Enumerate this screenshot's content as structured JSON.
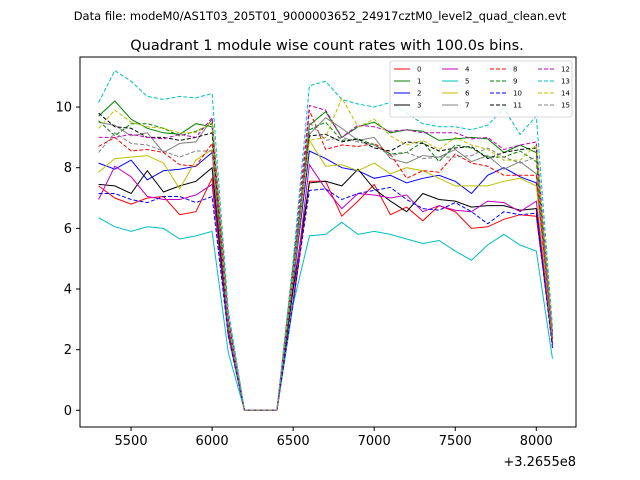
{
  "chart_data": {
    "type": "line",
    "suptitle": "Data file: modeM0/AS1T03_205T01_9000003652_24917cztM0_level2_quad_clean.evt",
    "title": "Quadrant 1 module wise count rates with 100.0s bins.",
    "xlabel": "",
    "ylabel": "",
    "x_offset_label": "+3.2655e8",
    "xlim": [
      5185,
      8245
    ],
    "ylim": [
      -0.55,
      11.65
    ],
    "xticks": [
      5500,
      6000,
      6500,
      7000,
      7500,
      8000
    ],
    "yticks": [
      0,
      2,
      4,
      6,
      8,
      10
    ],
    "x": [
      5300,
      5400,
      5500,
      5600,
      5700,
      5800,
      5900,
      6000,
      6100,
      6200,
      6300,
      6400,
      6500,
      6600,
      6700,
      6800,
      6900,
      7000,
      7100,
      7200,
      7300,
      7400,
      7500,
      7600,
      7700,
      7800,
      7900,
      8000,
      8100
    ],
    "legend_position": "top-right",
    "series": [
      {
        "name": "0",
        "color": "#ff0000",
        "dash": "solid",
        "values": [
          7.4,
          7.0,
          6.8,
          7.0,
          7.05,
          6.45,
          6.55,
          7.65,
          2.5,
          0,
          0,
          0,
          3.5,
          7.55,
          7.55,
          6.4,
          6.9,
          7.45,
          6.45,
          6.7,
          6.25,
          6.75,
          6.55,
          6.0,
          6.05,
          6.3,
          6.45,
          6.4,
          2.2
        ]
      },
      {
        "name": "1",
        "color": "#008000",
        "dash": "solid",
        "values": [
          9.7,
          10.2,
          9.6,
          9.3,
          9.15,
          9.1,
          9.45,
          9.35,
          3.0,
          0,
          0,
          0,
          4.6,
          9.4,
          9.85,
          9.0,
          9.35,
          9.5,
          9.15,
          9.25,
          9.2,
          8.9,
          8.95,
          9.0,
          8.95,
          8.5,
          8.75,
          8.5,
          2.55
        ]
      },
      {
        "name": "2",
        "color": "#0000ff",
        "dash": "solid",
        "values": [
          8.15,
          7.95,
          8.25,
          7.6,
          7.9,
          7.95,
          8.05,
          8.5,
          2.8,
          0,
          0,
          0,
          4.2,
          8.55,
          8.3,
          8.0,
          7.9,
          7.65,
          7.75,
          7.5,
          7.65,
          7.75,
          7.55,
          7.15,
          7.75,
          8.0,
          7.7,
          7.5,
          2.3
        ]
      },
      {
        "name": "3",
        "color": "#000000",
        "dash": "solid",
        "values": [
          7.45,
          7.4,
          7.15,
          7.9,
          7.2,
          7.4,
          7.55,
          8.0,
          2.65,
          0,
          0,
          0,
          4.0,
          7.5,
          7.55,
          7.4,
          7.95,
          7.3,
          6.9,
          6.55,
          7.15,
          6.95,
          6.9,
          6.7,
          6.75,
          6.75,
          6.6,
          6.65,
          2.2
        ]
      },
      {
        "name": "4",
        "color": "#c000c0",
        "dash": "solid",
        "values": [
          6.95,
          8.05,
          7.7,
          7.05,
          6.95,
          6.95,
          7.1,
          7.45,
          2.5,
          0,
          0,
          0,
          3.6,
          8.1,
          7.3,
          6.65,
          7.15,
          7.1,
          7.0,
          7.1,
          6.55,
          6.75,
          6.6,
          6.55,
          6.9,
          6.85,
          6.55,
          6.9,
          2.15
        ]
      },
      {
        "name": "5",
        "color": "#00bfbf",
        "dash": "solid",
        "values": [
          6.35,
          6.05,
          5.9,
          6.05,
          6.0,
          5.65,
          5.75,
          5.9,
          1.9,
          0,
          0,
          0,
          3.5,
          5.75,
          5.8,
          6.2,
          5.8,
          5.9,
          5.8,
          5.65,
          5.5,
          5.6,
          5.25,
          4.95,
          5.45,
          5.8,
          5.45,
          5.25,
          1.7
        ]
      },
      {
        "name": "6",
        "color": "#bfbf00",
        "dash": "solid",
        "values": [
          7.85,
          8.3,
          8.35,
          8.4,
          8.15,
          7.3,
          8.25,
          8.6,
          2.8,
          0,
          0,
          0,
          4.3,
          8.9,
          8.05,
          8.1,
          7.9,
          8.15,
          7.8,
          8.0,
          7.9,
          7.65,
          7.4,
          7.4,
          7.4,
          7.55,
          7.65,
          7.4,
          2.3
        ]
      },
      {
        "name": "7",
        "color": "#808080",
        "dash": "solid",
        "values": [
          9.5,
          9.4,
          9.05,
          9.15,
          8.5,
          8.8,
          8.85,
          9.6,
          2.95,
          0,
          0,
          0,
          4.6,
          9.1,
          9.65,
          9.3,
          8.9,
          9.0,
          8.3,
          8.15,
          8.4,
          8.35,
          8.6,
          8.2,
          8.4,
          7.95,
          8.2,
          7.8,
          2.45
        ]
      },
      {
        "name": "8",
        "color": "#ff0000",
        "dash": "dashed",
        "values": [
          8.7,
          9.0,
          8.55,
          8.6,
          8.5,
          8.1,
          8.05,
          8.8,
          2.7,
          0,
          0,
          0,
          4.3,
          9.9,
          8.6,
          8.75,
          8.7,
          8.8,
          8.45,
          7.65,
          7.9,
          7.85,
          8.45,
          8.15,
          8.05,
          7.75,
          7.75,
          7.75,
          2.35
        ]
      },
      {
        "name": "9",
        "color": "#008000",
        "dash": "dashed",
        "values": [
          9.55,
          9.05,
          9.45,
          9.45,
          9.3,
          9.05,
          9.2,
          9.45,
          2.9,
          0,
          0,
          0,
          4.7,
          9.25,
          9.5,
          8.9,
          8.95,
          8.75,
          8.45,
          8.5,
          8.85,
          8.2,
          8.75,
          8.65,
          8.35,
          8.35,
          8.55,
          8.2,
          2.5
        ]
      },
      {
        "name": "10",
        "color": "#0000ff",
        "dash": "dashed",
        "values": [
          7.15,
          7.15,
          6.95,
          6.85,
          7.05,
          7.05,
          6.85,
          7.05,
          2.45,
          0,
          0,
          0,
          3.6,
          7.25,
          7.3,
          6.95,
          7.15,
          7.25,
          7.35,
          6.95,
          6.65,
          6.6,
          6.85,
          6.55,
          6.15,
          6.55,
          6.45,
          6.5,
          2.05
        ]
      },
      {
        "name": "11",
        "color": "#000000",
        "dash": "dashed",
        "values": [
          9.8,
          9.35,
          9.3,
          9.0,
          9.0,
          8.9,
          9.0,
          9.15,
          2.9,
          0,
          0,
          0,
          4.4,
          9.05,
          9.1,
          8.85,
          8.95,
          8.65,
          8.55,
          8.85,
          8.8,
          8.55,
          8.65,
          8.7,
          8.3,
          8.5,
          8.6,
          8.65,
          2.55
        ]
      },
      {
        "name": "12",
        "color": "#c000c0",
        "dash": "dashed",
        "values": [
          9.0,
          9.0,
          9.1,
          9.0,
          8.95,
          9.1,
          9.0,
          9.65,
          3.1,
          0,
          0,
          0,
          4.85,
          10.05,
          9.9,
          9.0,
          9.4,
          9.35,
          9.2,
          9.25,
          9.15,
          9.15,
          9.15,
          8.95,
          9.0,
          8.6,
          8.75,
          8.85,
          2.55
        ]
      },
      {
        "name": "13",
        "color": "#00bfbf",
        "dash": "dashed",
        "values": [
          10.15,
          11.2,
          10.85,
          10.35,
          10.25,
          10.35,
          10.3,
          10.45,
          3.3,
          0,
          0,
          0,
          4.95,
          10.7,
          10.85,
          10.25,
          10.1,
          10.0,
          10.15,
          9.8,
          9.45,
          9.35,
          9.35,
          9.25,
          9.4,
          9.95,
          9.1,
          9.7,
          2.75
        ]
      },
      {
        "name": "14",
        "color": "#bfbf00",
        "dash": "dashed",
        "values": [
          9.3,
          9.9,
          9.5,
          9.35,
          9.3,
          9.15,
          9.15,
          9.5,
          2.9,
          0,
          0,
          0,
          4.55,
          8.9,
          9.0,
          10.3,
          9.35,
          9.6,
          9.05,
          8.75,
          8.9,
          8.6,
          9.0,
          8.75,
          8.6,
          8.25,
          8.25,
          8.75,
          2.55
        ]
      },
      {
        "name": "15",
        "color": "#808080",
        "dash": "dashed",
        "values": [
          8.5,
          9.15,
          8.8,
          8.75,
          8.55,
          8.35,
          8.55,
          8.55,
          2.75,
          0,
          0,
          0,
          4.3,
          9.5,
          8.9,
          9.0,
          8.85,
          8.75,
          8.4,
          8.5,
          8.3,
          8.35,
          8.35,
          8.4,
          8.65,
          8.35,
          8.15,
          8.35,
          2.45
        ]
      }
    ]
  }
}
